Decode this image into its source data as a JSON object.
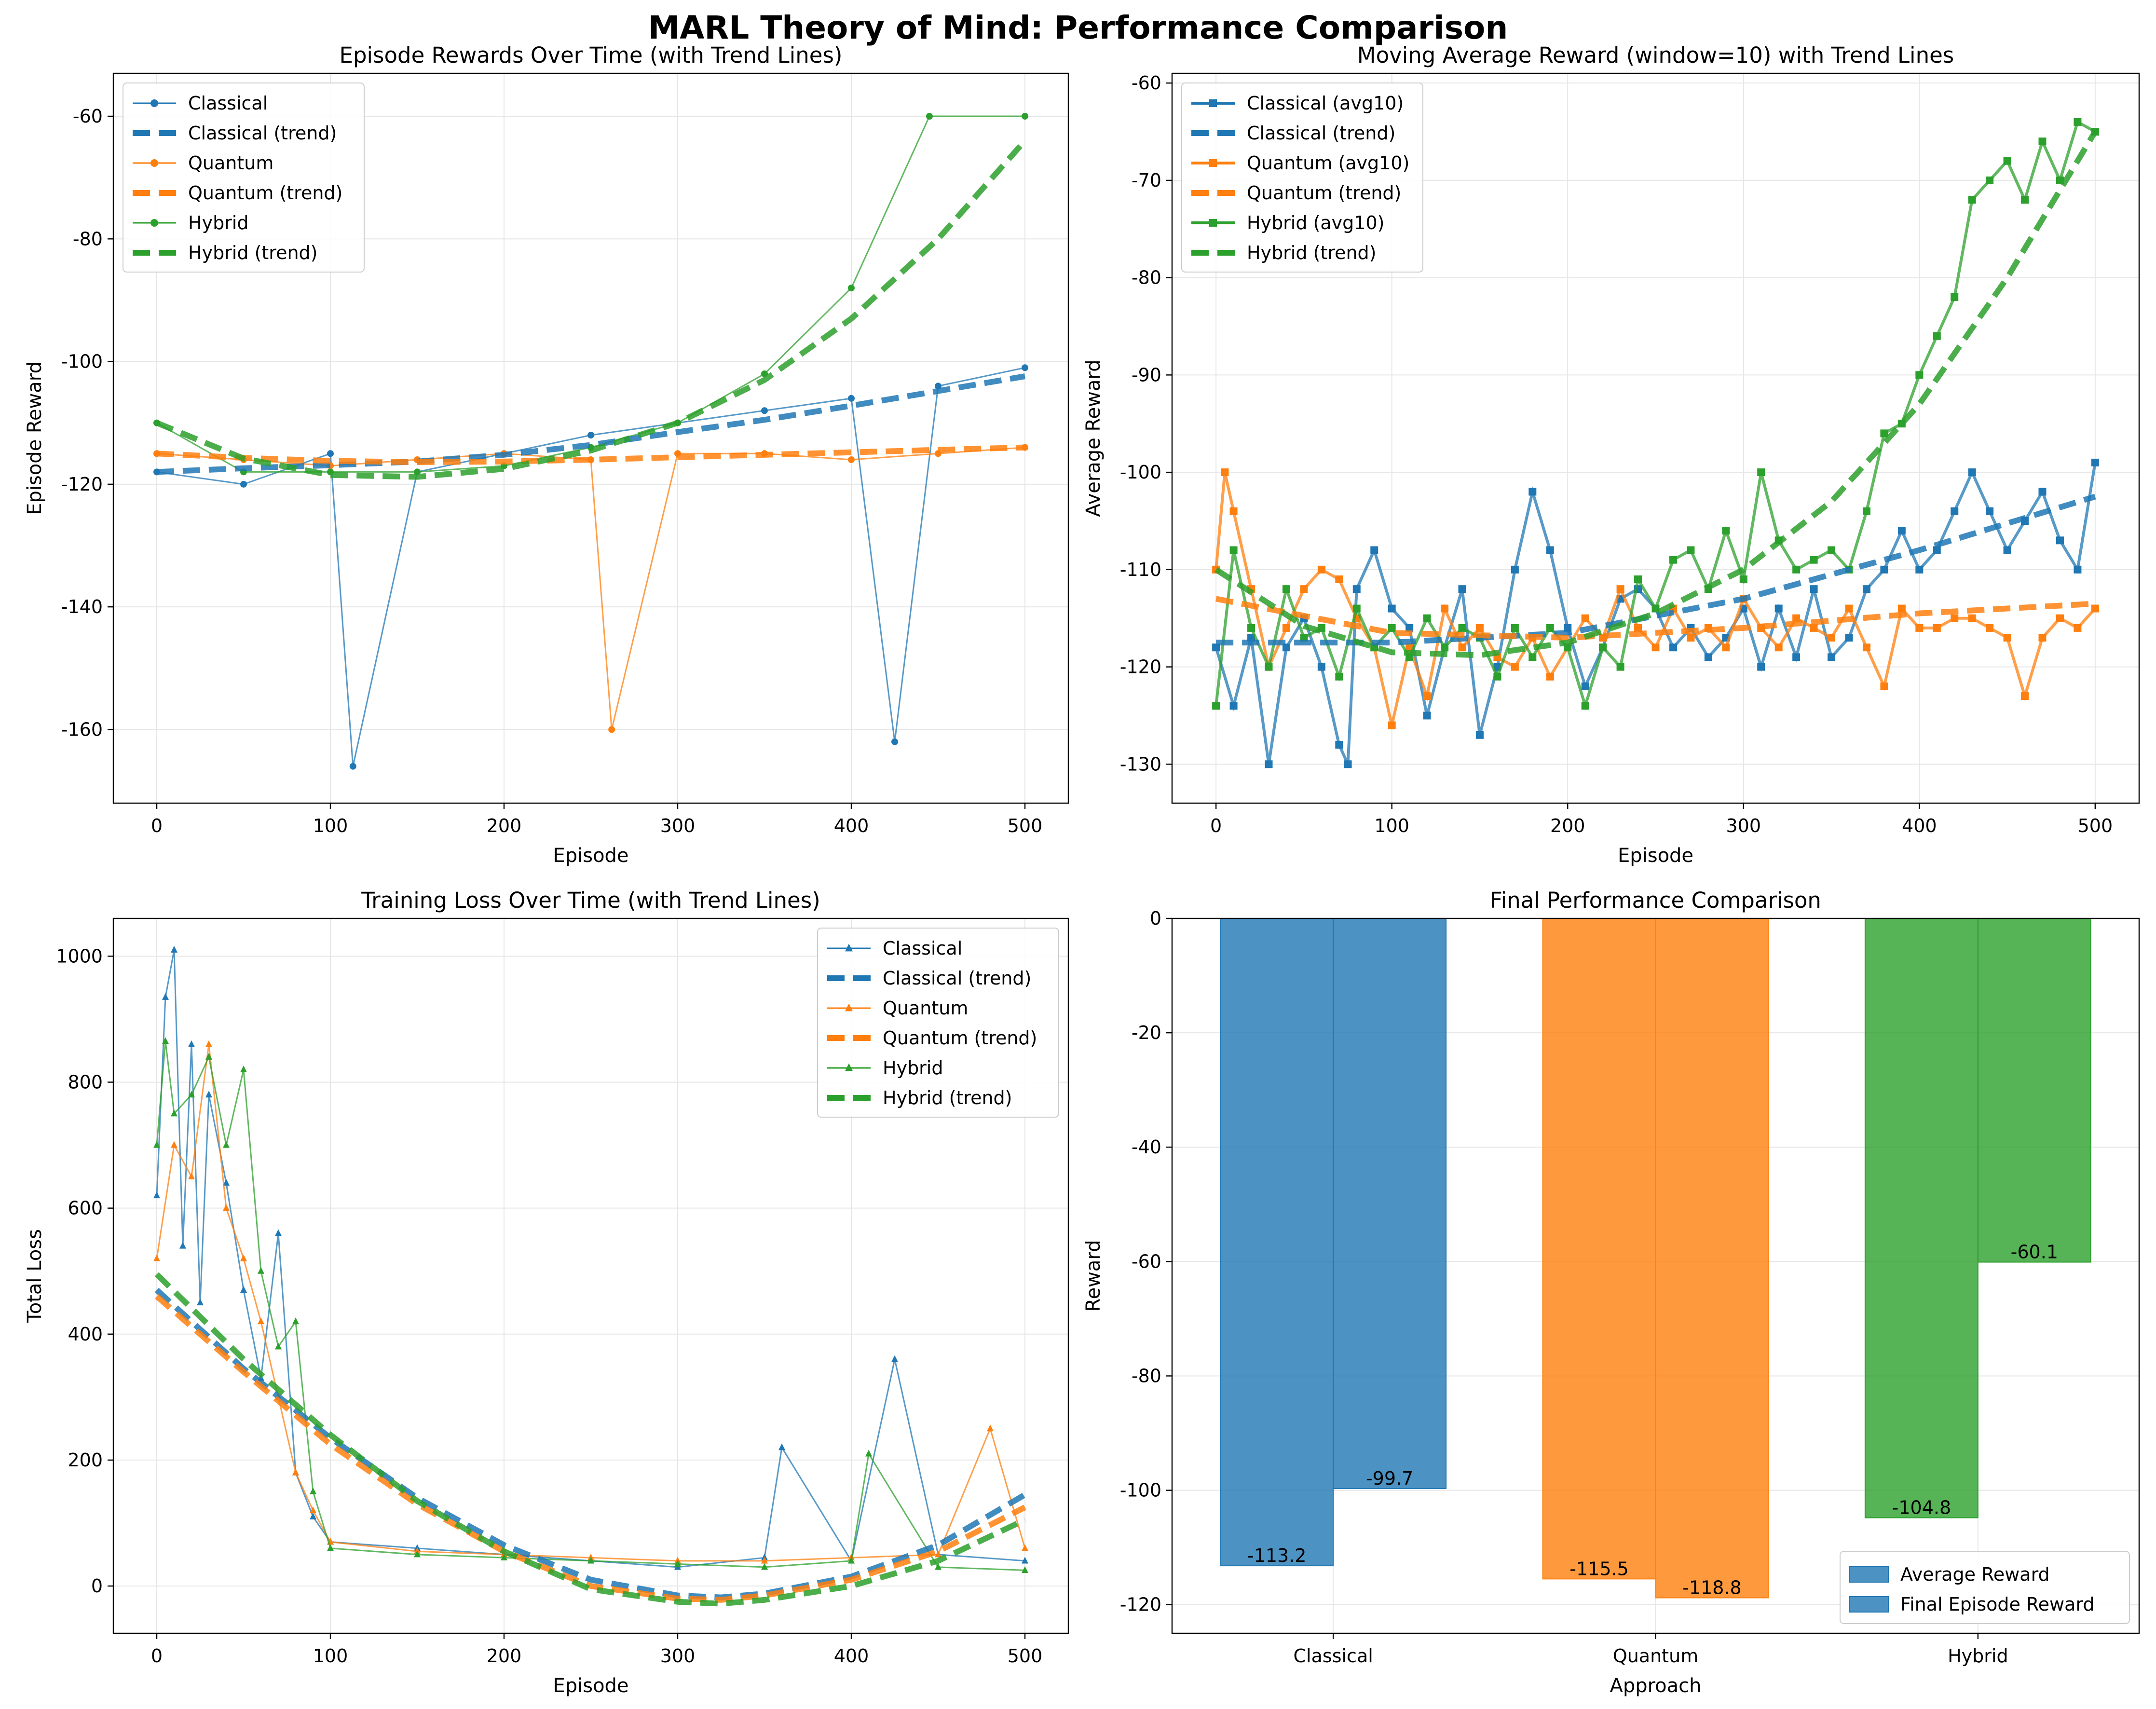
{
  "figure": {
    "title": "MARL Theory of Mind: Performance Comparison",
    "colors": {
      "Classical": "#1f77b4",
      "Quantum": "#ff7f0e",
      "Hybrid": "#2ca02c"
    }
  },
  "chart_data": [
    {
      "id": "rewards",
      "type": "line",
      "title": "Episode Rewards Over Time (with Trend Lines)",
      "xlabel": "Episode",
      "ylabel": "Episode Reward",
      "xlim": [
        -25,
        525
      ],
      "ylim": [
        -172,
        -53
      ],
      "xticks": [
        0,
        100,
        200,
        300,
        400,
        500
      ],
      "yticks": [
        -160,
        -140,
        -120,
        -100,
        -80,
        -60
      ],
      "grid": true,
      "legend_position": "upper-left",
      "legend": [
        "Classical",
        "Classical (trend)",
        "Quantum",
        "Quantum (trend)",
        "Hybrid",
        "Hybrid (trend)"
      ],
      "series": [
        {
          "name": "Classical",
          "color": "#1f77b4",
          "marker": "circle",
          "x": [
            0,
            50,
            100,
            113,
            150,
            200,
            250,
            300,
            350,
            400,
            425,
            450,
            500
          ],
          "y": [
            -118,
            -120,
            -115,
            -166,
            -118,
            -115,
            -112,
            -110,
            -108,
            -106,
            -162,
            -104,
            -101
          ]
        },
        {
          "name": "Quantum",
          "color": "#ff7f0e",
          "marker": "circle",
          "x": [
            0,
            50,
            100,
            150,
            200,
            250,
            262,
            300,
            350,
            400,
            450,
            500
          ],
          "y": [
            -115,
            -116,
            -117,
            -116,
            -115,
            -116,
            -160,
            -115,
            -115,
            -116,
            -115,
            -114
          ]
        },
        {
          "name": "Hybrid",
          "color": "#2ca02c",
          "marker": "circle",
          "x": [
            0,
            50,
            100,
            150,
            200,
            250,
            300,
            350,
            400,
            445,
            500
          ],
          "y": [
            -110,
            -118,
            -118,
            -118,
            -117,
            -114,
            -110,
            -102,
            -88,
            -60,
            -60
          ]
        }
      ],
      "trends": [
        {
          "name": "Classical (trend)",
          "color": "#1f77b4",
          "x": [
            0,
            50,
            100,
            150,
            200,
            250,
            300,
            350,
            400,
            450,
            500
          ],
          "y": [
            -118,
            -117.4,
            -116.9,
            -116.3,
            -115.2,
            -113.6,
            -111.5,
            -109.5,
            -107.2,
            -104.8,
            -102.4
          ]
        },
        {
          "name": "Quantum (trend)",
          "color": "#ff7f0e",
          "x": [
            0,
            50,
            100,
            150,
            200,
            250,
            300,
            350,
            400,
            450,
            500
          ],
          "y": [
            -115,
            -115.7,
            -116.2,
            -116.4,
            -116.3,
            -116,
            -115.6,
            -115.2,
            -114.8,
            -114.4,
            -114
          ]
        },
        {
          "name": "Hybrid (trend)",
          "color": "#2ca02c",
          "x": [
            0,
            50,
            100,
            150,
            200,
            250,
            300,
            350,
            400,
            450,
            500
          ],
          "y": [
            -110,
            -115.8,
            -118.5,
            -118.8,
            -117.5,
            -114.5,
            -110,
            -103,
            -93,
            -80,
            -64
          ]
        }
      ]
    },
    {
      "id": "moving_avg",
      "type": "line",
      "title": "Moving Average Reward (window=10) with Trend Lines",
      "xlabel": "Episode",
      "ylabel": "Average Reward",
      "xlim": [
        -25,
        525
      ],
      "ylim": [
        -134,
        -59
      ],
      "xticks": [
        0,
        100,
        200,
        300,
        400,
        500
      ],
      "yticks": [
        -130,
        -120,
        -110,
        -100,
        -90,
        -80,
        -70,
        -60
      ],
      "grid": true,
      "legend_position": "upper-left",
      "legend": [
        "Classical (avg10)",
        "Classical (trend)",
        "Quantum (avg10)",
        "Quantum (trend)",
        "Hybrid (avg10)",
        "Hybrid (trend)"
      ],
      "series": [
        {
          "name": "Classical (avg10)",
          "color": "#1f77b4",
          "marker": "square",
          "x": [
            0,
            10,
            20,
            30,
            40,
            50,
            60,
            70,
            75,
            80,
            90,
            100,
            110,
            120,
            130,
            140,
            150,
            160,
            170,
            180,
            190,
            200,
            210,
            220,
            230,
            240,
            250,
            260,
            270,
            280,
            290,
            300,
            310,
            320,
            330,
            340,
            350,
            360,
            370,
            380,
            390,
            400,
            410,
            420,
            430,
            440,
            450,
            460,
            470,
            480,
            490,
            500
          ],
          "y": [
            -118,
            -124,
            -117,
            -130,
            -118,
            -115,
            -120,
            -128,
            -130,
            -112,
            -108,
            -114,
            -116,
            -125,
            -118,
            -112,
            -127,
            -120,
            -110,
            -102,
            -108,
            -116,
            -122,
            -118,
            -113,
            -112,
            -114,
            -118,
            -116,
            -119,
            -117,
            -114,
            -120,
            -114,
            -119,
            -112,
            -119,
            -117,
            -112,
            -110,
            -106,
            -110,
            -108,
            -104,
            -100,
            -104,
            -108,
            -105,
            -102,
            -107,
            -110,
            -99
          ]
        },
        {
          "name": "Quantum (avg10)",
          "color": "#ff7f0e",
          "marker": "square",
          "x": [
            0,
            5,
            10,
            20,
            30,
            40,
            50,
            60,
            70,
            80,
            90,
            100,
            110,
            120,
            130,
            140,
            150,
            160,
            170,
            180,
            190,
            200,
            210,
            220,
            230,
            240,
            250,
            260,
            270,
            280,
            290,
            300,
            310,
            320,
            330,
            340,
            350,
            360,
            370,
            380,
            390,
            400,
            410,
            420,
            430,
            440,
            450,
            460,
            470,
            480,
            490,
            500
          ],
          "y": [
            -110,
            -100,
            -104,
            -112,
            -120,
            -116,
            -112,
            -110,
            -111,
            -115,
            -118,
            -126,
            -118,
            -123,
            -114,
            -118,
            -116,
            -119,
            -120,
            -117,
            -121,
            -118,
            -115,
            -117,
            -112,
            -116,
            -118,
            -114,
            -117,
            -116,
            -118,
            -113,
            -116,
            -118,
            -115,
            -116,
            -117,
            -114,
            -118,
            -122,
            -114,
            -116,
            -116,
            -115,
            -115,
            -116,
            -117,
            -123,
            -117,
            -115,
            -116,
            -114
          ]
        },
        {
          "name": "Hybrid (avg10)",
          "color": "#2ca02c",
          "marker": "square",
          "x": [
            0,
            10,
            20,
            30,
            40,
            50,
            60,
            70,
            80,
            90,
            100,
            110,
            120,
            130,
            140,
            150,
            160,
            170,
            180,
            190,
            200,
            210,
            220,
            230,
            240,
            250,
            260,
            270,
            280,
            290,
            300,
            310,
            320,
            330,
            340,
            350,
            360,
            370,
            380,
            390,
            400,
            410,
            420,
            430,
            440,
            450,
            460,
            470,
            480,
            490,
            500
          ],
          "y": [
            -124,
            -108,
            -116,
            -120,
            -112,
            -117,
            -116,
            -121,
            -114,
            -118,
            -116,
            -119,
            -115,
            -118,
            -116,
            -117,
            -121,
            -116,
            -119,
            -116,
            -118,
            -124,
            -118,
            -120,
            -111,
            -114,
            -109,
            -108,
            -112,
            -106,
            -111,
            -100,
            -107,
            -110,
            -109,
            -108,
            -110,
            -104,
            -96,
            -95,
            -90,
            -86,
            -82,
            -72,
            -70,
            -68,
            -72,
            -66,
            -70,
            -64,
            -65
          ]
        }
      ],
      "trends": [
        {
          "name": "Classical (trend)",
          "color": "#1f77b4",
          "x": [
            0,
            100,
            200,
            300,
            400,
            500
          ],
          "y": [
            -117.5,
            -117.5,
            -116.5,
            -113,
            -108,
            -102.5
          ]
        },
        {
          "name": "Quantum (trend)",
          "color": "#ff7f0e",
          "x": [
            0,
            100,
            200,
            300,
            400,
            500
          ],
          "y": [
            -113,
            -116.5,
            -117,
            -116,
            -114.5,
            -113.5
          ]
        },
        {
          "name": "Hybrid (trend)",
          "color": "#2ca02c",
          "x": [
            0,
            50,
            100,
            150,
            200,
            250,
            300,
            350,
            400,
            450,
            500
          ],
          "y": [
            -110,
            -115.8,
            -118.5,
            -118.8,
            -117.5,
            -114.5,
            -110,
            -103,
            -93,
            -80,
            -65
          ]
        }
      ]
    },
    {
      "id": "loss",
      "type": "line",
      "title": "Training Loss Over Time (with Trend Lines)",
      "xlabel": "Episode",
      "ylabel": "Total Loss",
      "xlim": [
        -25,
        525
      ],
      "ylim": [
        -75,
        1060
      ],
      "xticks": [
        0,
        100,
        200,
        300,
        400,
        500
      ],
      "yticks": [
        0,
        200,
        400,
        600,
        800,
        1000
      ],
      "grid": true,
      "legend_position": "upper-right",
      "legend": [
        "Classical",
        "Classical (trend)",
        "Quantum",
        "Quantum (trend)",
        "Hybrid",
        "Hybrid (trend)"
      ],
      "series": [
        {
          "name": "Classical",
          "color": "#1f77b4",
          "marker": "triangle",
          "x": [
            0,
            5,
            10,
            15,
            20,
            25,
            30,
            40,
            50,
            60,
            70,
            80,
            90,
            100,
            150,
            200,
            250,
            300,
            350,
            360,
            400,
            425,
            450,
            500
          ],
          "y": [
            620,
            935,
            1010,
            540,
            860,
            450,
            780,
            640,
            470,
            330,
            560,
            180,
            110,
            70,
            60,
            50,
            40,
            30,
            45,
            220,
            40,
            360,
            50,
            40
          ]
        },
        {
          "name": "Quantum",
          "color": "#ff7f0e",
          "marker": "triangle",
          "x": [
            0,
            10,
            20,
            30,
            40,
            50,
            60,
            70,
            80,
            90,
            100,
            150,
            200,
            250,
            300,
            350,
            400,
            450,
            480,
            500
          ],
          "y": [
            520,
            700,
            650,
            860,
            600,
            520,
            420,
            300,
            180,
            120,
            70,
            55,
            50,
            45,
            40,
            40,
            45,
            50,
            250,
            60
          ]
        },
        {
          "name": "Hybrid",
          "color": "#2ca02c",
          "marker": "triangle",
          "x": [
            0,
            5,
            10,
            20,
            30,
            40,
            50,
            60,
            70,
            80,
            90,
            100,
            150,
            200,
            250,
            300,
            350,
            400,
            410,
            450,
            500
          ],
          "y": [
            700,
            865,
            750,
            780,
            840,
            700,
            820,
            500,
            380,
            420,
            150,
            60,
            50,
            45,
            40,
            35,
            30,
            40,
            210,
            30,
            25
          ]
        }
      ],
      "trends": [
        {
          "name": "Classical (trend)",
          "color": "#1f77b4",
          "x": [
            0,
            50,
            100,
            150,
            200,
            250,
            300,
            325,
            350,
            400,
            450,
            500
          ],
          "y": [
            470,
            345,
            235,
            140,
            65,
            10,
            -15,
            -18,
            -12,
            15,
            65,
            145
          ]
        },
        {
          "name": "Quantum (trend)",
          "color": "#ff7f0e",
          "x": [
            0,
            50,
            100,
            150,
            200,
            250,
            300,
            325,
            350,
            400,
            450,
            500
          ],
          "y": [
            460,
            340,
            225,
            130,
            55,
            0,
            -20,
            -22,
            -15,
            10,
            55,
            125
          ]
        },
        {
          "name": "Hybrid (trend)",
          "color": "#2ca02c",
          "x": [
            0,
            50,
            100,
            150,
            200,
            250,
            300,
            325,
            350,
            400,
            450,
            500
          ],
          "y": [
            495,
            360,
            240,
            135,
            55,
            -5,
            -25,
            -28,
            -22,
            0,
            40,
            105
          ]
        }
      ]
    },
    {
      "id": "final",
      "type": "bar",
      "title": "Final Performance Comparison",
      "xlabel": "Approach",
      "ylabel": "Reward",
      "categories": [
        "Classical",
        "Quantum",
        "Hybrid"
      ],
      "ylim": [
        -125,
        0
      ],
      "yticks": [
        -120,
        -100,
        -80,
        -60,
        -40,
        -20,
        0
      ],
      "grid": true,
      "legend_position": "lower-right",
      "legend": [
        "Average Reward",
        "Final Episode Reward"
      ],
      "series": [
        {
          "name": "Average Reward",
          "values": [
            -113.2,
            -115.5,
            -104.8
          ]
        },
        {
          "name": "Final Episode Reward",
          "values": [
            -99.7,
            -118.8,
            -60.1
          ]
        }
      ],
      "bar_colors": [
        "#1f77b4",
        "#ff7f0e",
        "#2ca02c"
      ],
      "data_labels": [
        [
          "-113.2",
          "-99.7"
        ],
        [
          "-115.5",
          "-118.8"
        ],
        [
          "-104.8",
          "-60.1"
        ]
      ]
    }
  ]
}
